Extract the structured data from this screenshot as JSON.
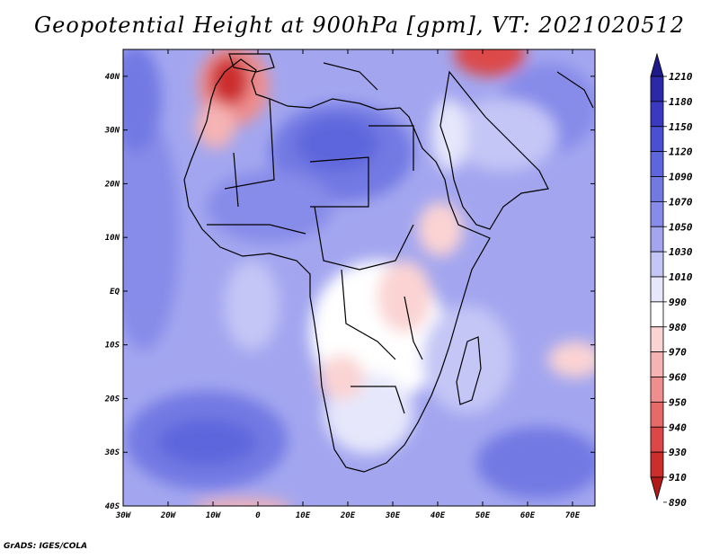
{
  "title": "Geopotential Height at 900hPa [gpm], VT: 2021020512",
  "footer": "GrADS: IGES/COLA",
  "map": {
    "lon_labels": [
      "30W",
      "20W",
      "10W",
      "0",
      "10E",
      "20E",
      "30E",
      "40E",
      "50E",
      "60E",
      "70E"
    ],
    "lat_labels": [
      "40N",
      "30N",
      "20N",
      "10N",
      "EQ",
      "10S",
      "20S",
      "30S",
      "40S"
    ],
    "lon_range": [
      -30,
      75
    ],
    "lat_range": [
      -40,
      45
    ]
  },
  "colorbar": {
    "levels": [
      "1210",
      "1180",
      "1150",
      "1120",
      "1090",
      "1070",
      "1050",
      "1030",
      "1010",
      "990",
      "980",
      "970",
      "960",
      "950",
      "940",
      "930",
      "910",
      "890"
    ],
    "colors": [
      "#1e1a8c",
      "#2c29a8",
      "#3a39c0",
      "#4b4fd2",
      "#5d66dc",
      "#7279e3",
      "#878be9",
      "#a3a6ef",
      "#c4c6f6",
      "#e6e7fb",
      "#ffffff",
      "#fbd3d3",
      "#f6b3b3",
      "#ef8e8e",
      "#e66a6a",
      "#dc4848",
      "#cc2d2d",
      "#b21a1a"
    ]
  }
}
